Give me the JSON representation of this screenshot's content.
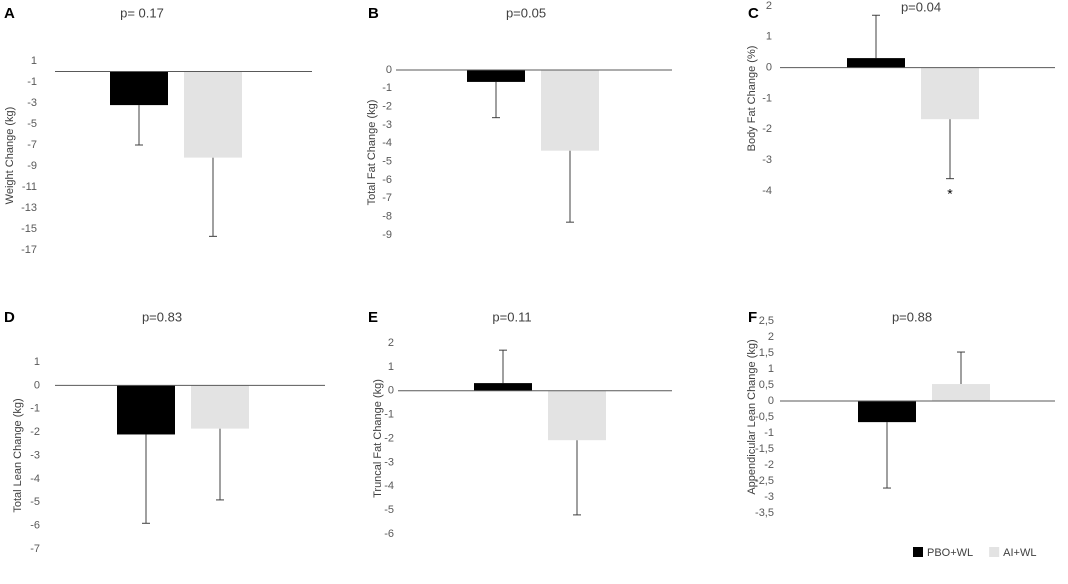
{
  "chart_data": [
    {
      "type": "bar",
      "label": "A",
      "title": "p= 0.17",
      "y_label": "Weight Change (kg)",
      "values": [
        -3.2,
        -8.2
      ],
      "errors": [
        3.8,
        7.5
      ],
      "ylim": [
        -17,
        1
      ],
      "yticks": [
        1,
        -1,
        -3,
        -5,
        -7,
        -9,
        -11,
        -13,
        -15,
        -17
      ]
    },
    {
      "type": "bar",
      "label": "B",
      "title": "p=0.05",
      "y_label": "Total  Fat Change (kg)",
      "values": [
        -0.65,
        -4.4
      ],
      "errors": [
        1.95,
        3.9
      ],
      "ylim": [
        -9,
        0
      ],
      "yticks": [
        0,
        -1,
        -2,
        -3,
        -4,
        -5,
        -6,
        -7,
        -8,
        -9
      ]
    },
    {
      "type": "bar",
      "label": "C",
      "title": "p=0.04",
      "y_label": "Body Fat Change (%)",
      "values": [
        0.31,
        -1.67
      ],
      "errors": [
        1.39,
        1.93
      ],
      "annotation": "*",
      "ylim": [
        -4,
        2
      ],
      "yticks": [
        2,
        1,
        0,
        -1,
        -2,
        -3,
        -4
      ]
    },
    {
      "type": "bar",
      "label": "D",
      "title": "p=0.83",
      "y_label": "Total Lean Change (kg)",
      "values": [
        -2.1,
        -1.85
      ],
      "errors": [
        3.8,
        3.05
      ],
      "ylim": [
        -7,
        1
      ],
      "yticks": [
        1,
        0,
        -1,
        -2,
        -3,
        -4,
        -5,
        -6,
        -7
      ]
    },
    {
      "type": "bar",
      "label": "E",
      "title": "p=0.11",
      "y_label": "Truncal Fat Change (kg)",
      "values": [
        0.32,
        -2.07
      ],
      "errors": [
        1.38,
        3.13
      ],
      "ylim": [
        -6,
        2
      ],
      "yticks": [
        2,
        1,
        0,
        -1,
        -2,
        -3,
        -4,
        -5,
        -6
      ]
    },
    {
      "type": "bar",
      "label": "F",
      "title": "p=0.88",
      "y_label": "Appendicular Lean Change (kg)",
      "values": [
        -0.66,
        0.53
      ],
      "errors": [
        2.06,
        1.0
      ],
      "ylim": [
        -3.5,
        2.5
      ],
      "yticks": [
        {
          "value": 2.5,
          "label": "2,5"
        },
        2,
        {
          "value": 1.5,
          "label": "1,5"
        },
        1,
        {
          "value": 0.5,
          "label": "0,5"
        },
        0,
        {
          "value": -0.5,
          "label": "-0,5"
        },
        -1,
        {
          "value": -1.5,
          "label": "-1,5"
        },
        -2,
        {
          "value": -2.5,
          "label": "-2,5"
        },
        -3,
        {
          "value": -3.5,
          "label": "-3,5"
        }
      ]
    }
  ],
  "legend": {
    "position": "lower right",
    "items": [
      {
        "name": "PBO+WL",
        "color": "#000000"
      },
      {
        "name": "AI+WL",
        "color": "#e3e3e3"
      }
    ]
  }
}
